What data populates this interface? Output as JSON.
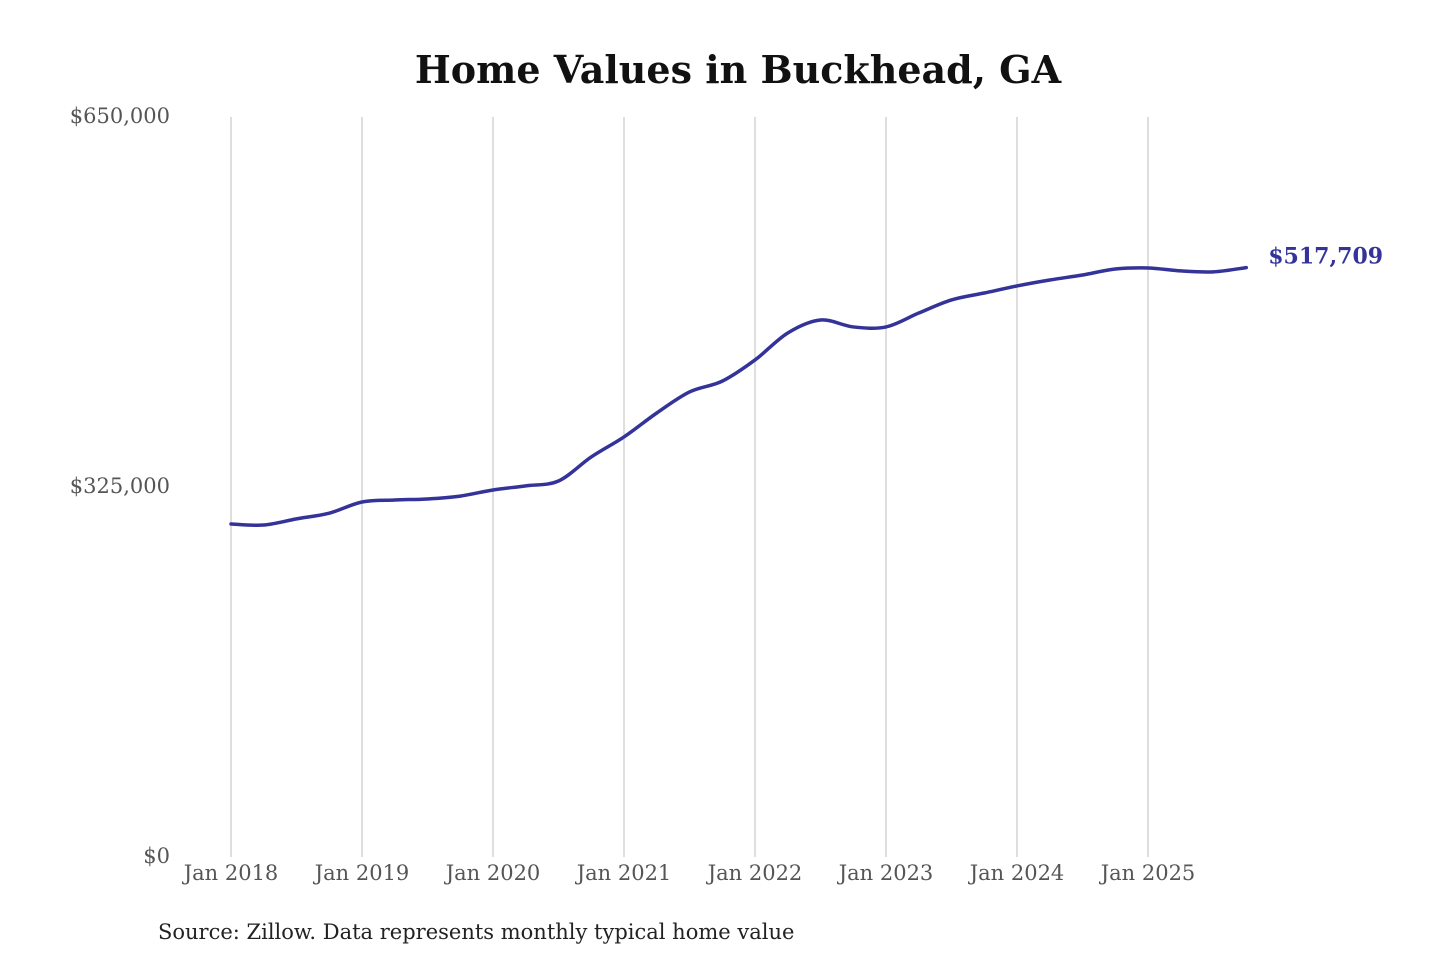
{
  "chart_data": {
    "type": "line",
    "title": "Home Values in Buckhead, GA",
    "source": "Source: Zillow. Data represents monthly typical home value",
    "ylim": [
      0,
      650000
    ],
    "y_ticks": [
      0,
      325000,
      650000
    ],
    "y_tick_labels": [
      "$0",
      "$325,000",
      "$650,000"
    ],
    "x_tick_labels": [
      "Jan 2018",
      "Jan 2019",
      "Jan 2020",
      "Jan 2021",
      "Jan 2022",
      "Jan 2023",
      "Jan 2024",
      "Jan 2025"
    ],
    "x_ticks": [
      "2018-01",
      "2019-01",
      "2020-01",
      "2021-01",
      "2022-01",
      "2023-01",
      "2024-01",
      "2025-01"
    ],
    "grid": "vertical",
    "line_color": "#33339a",
    "end_label": "$517,709",
    "x": [
      "2018-01",
      "2018-04",
      "2018-07",
      "2018-10",
      "2019-01",
      "2019-04",
      "2019-07",
      "2019-10",
      "2020-01",
      "2020-04",
      "2020-07",
      "2020-10",
      "2021-01",
      "2021-04",
      "2021-07",
      "2021-10",
      "2022-01",
      "2022-04",
      "2022-07",
      "2022-10",
      "2023-01",
      "2023-04",
      "2023-07",
      "2023-10",
      "2024-01",
      "2024-04",
      "2024-07",
      "2024-10",
      "2025-01",
      "2025-04",
      "2025-07",
      "2025-10"
    ],
    "values": [
      292500,
      291600,
      297000,
      302000,
      311800,
      313600,
      314500,
      317000,
      322400,
      326000,
      330300,
      351400,
      369000,
      390000,
      408500,
      418000,
      436600,
      460300,
      471700,
      465600,
      465600,
      477800,
      489300,
      495400,
      501600,
      506800,
      511200,
      516500,
      517400,
      514800,
      514000,
      517709
    ]
  }
}
